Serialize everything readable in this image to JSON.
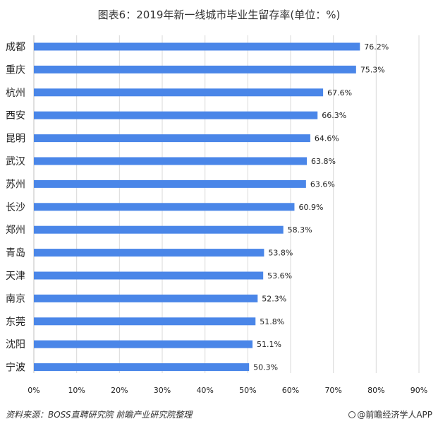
{
  "chart_data": {
    "type": "bar",
    "orientation": "horizontal",
    "title": "图表6：2019年新一线城市毕业生留存率(单位：%)",
    "categories": [
      "成都",
      "重庆",
      "杭州",
      "西安",
      "昆明",
      "武汉",
      "苏州",
      "长沙",
      "郑州",
      "青岛",
      "天津",
      "南京",
      "东莞",
      "沈阳",
      "宁波"
    ],
    "values": [
      76.2,
      75.3,
      67.6,
      66.3,
      64.6,
      63.8,
      63.6,
      60.9,
      58.3,
      53.8,
      53.6,
      52.3,
      51.8,
      51.1,
      50.3
    ],
    "value_labels": [
      "76.2%",
      "75.3%",
      "67.6%",
      "66.3%",
      "64.6%",
      "63.8%",
      "63.6%",
      "60.9%",
      "58.3%",
      "53.8%",
      "53.6%",
      "52.3%",
      "51.8%",
      "51.1%",
      "50.3%"
    ],
    "x_ticks": [
      "0%",
      "10%",
      "20%",
      "30%",
      "40%",
      "50%",
      "60%",
      "70%",
      "80%",
      "90%"
    ],
    "xlim": [
      0,
      90
    ],
    "grid": "vertical",
    "bar_color": "#4A86E8"
  },
  "footer": {
    "source": "资料来源：BOSS直聘研究院 前瞻产业研究院整理",
    "brand": "@前瞻经济学人APP"
  }
}
